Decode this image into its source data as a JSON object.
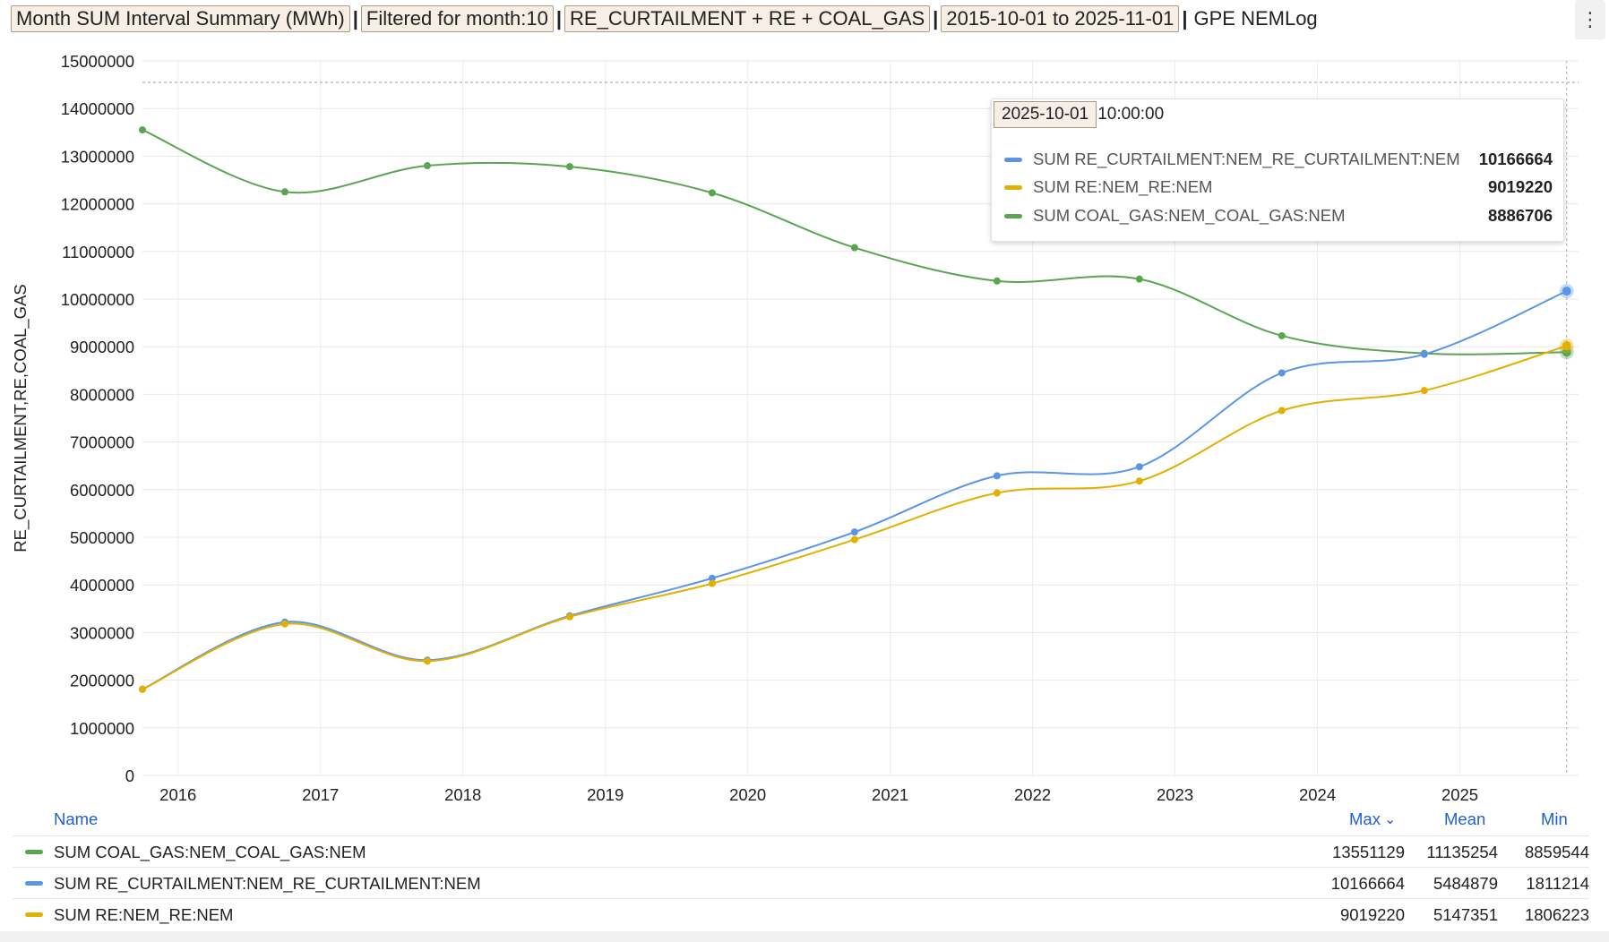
{
  "title": {
    "chips": [
      "Month SUM Interval Summary (MWh)",
      "Filtered for month:10",
      "RE_CURTAILMENT + RE + COAL_GAS",
      "2015-10-01 to 2025-11-01"
    ],
    "separator": "|",
    "suffix": "GPE NEMLog"
  },
  "menu_icon": "⋮",
  "colors": {
    "coal_gas": "#5aa552",
    "re_curtailment": "#5a95e8",
    "re": "#e2b000",
    "header_blue": "#1f5fd1"
  },
  "chart_data": {
    "type": "line",
    "ylabel": "RE_CURTAILMENT,RE,COAL_GAS",
    "xlabel": "",
    "ylim": [
      0,
      15000000
    ],
    "yticks": [
      0,
      1000000,
      2000000,
      3000000,
      4000000,
      5000000,
      6000000,
      7000000,
      8000000,
      9000000,
      10000000,
      11000000,
      12000000,
      13000000,
      14000000,
      15000000
    ],
    "xlim": [
      2015.75,
      2025.8333
    ],
    "xticks": [
      2016,
      2017,
      2018,
      2019,
      2020,
      2021,
      2022,
      2023,
      2024,
      2025
    ],
    "threshold": 14550000,
    "hover_x": 2025.75,
    "x": [
      2015.75,
      2016.75,
      2017.75,
      2018.75,
      2019.75,
      2020.75,
      2021.75,
      2022.75,
      2023.75,
      2024.75,
      2025.75
    ],
    "series": [
      {
        "name": "SUM COAL_GAS:NEM_COAL_GAS:NEM",
        "color_key": "coal_gas",
        "values": [
          13551129,
          12250000,
          12800000,
          12780000,
          12230000,
          11080000,
          10380000,
          10420000,
          9230000,
          8859544,
          8886706
        ]
      },
      {
        "name": "SUM RE_CURTAILMENT:NEM_RE_CURTAILMENT:NEM",
        "color_key": "re_curtailment",
        "values": [
          1811214,
          3220000,
          2420000,
          3350000,
          4140000,
          5110000,
          6290000,
          6480000,
          8450000,
          8840000,
          10166664
        ]
      },
      {
        "name": "SUM RE:NEM_RE:NEM",
        "color_key": "re",
        "values": [
          1806223,
          3180000,
          2400000,
          3330000,
          4030000,
          4950000,
          5930000,
          6180000,
          7660000,
          8080000,
          9019220
        ]
      }
    ]
  },
  "tooltip": {
    "date": "2025-10-01",
    "time": "10:00:00",
    "rows": [
      {
        "name": "SUM RE_CURTAILMENT:NEM_RE_CURTAILMENT:NEM",
        "value": "10166664",
        "color_key": "re_curtailment"
      },
      {
        "name": "SUM RE:NEM_RE:NEM",
        "value": "9019220",
        "color_key": "re"
      },
      {
        "name": "SUM COAL_GAS:NEM_COAL_GAS:NEM",
        "value": "8886706",
        "color_key": "coal_gas"
      }
    ]
  },
  "legend": {
    "headers": {
      "name": "Name",
      "max": "Max",
      "mean": "Mean",
      "min": "Min"
    },
    "sort_icon": "⌄",
    "rows": [
      {
        "name": "SUM COAL_GAS:NEM_COAL_GAS:NEM",
        "max": "13551129",
        "mean": "11135254",
        "min": "8859544",
        "color_key": "coal_gas"
      },
      {
        "name": "SUM RE_CURTAILMENT:NEM_RE_CURTAILMENT:NEM",
        "max": "10166664",
        "mean": "5484879",
        "min": "1811214",
        "color_key": "re_curtailment"
      },
      {
        "name": "SUM RE:NEM_RE:NEM",
        "max": "9019220",
        "mean": "5147351",
        "min": "1806223",
        "color_key": "re"
      }
    ]
  }
}
